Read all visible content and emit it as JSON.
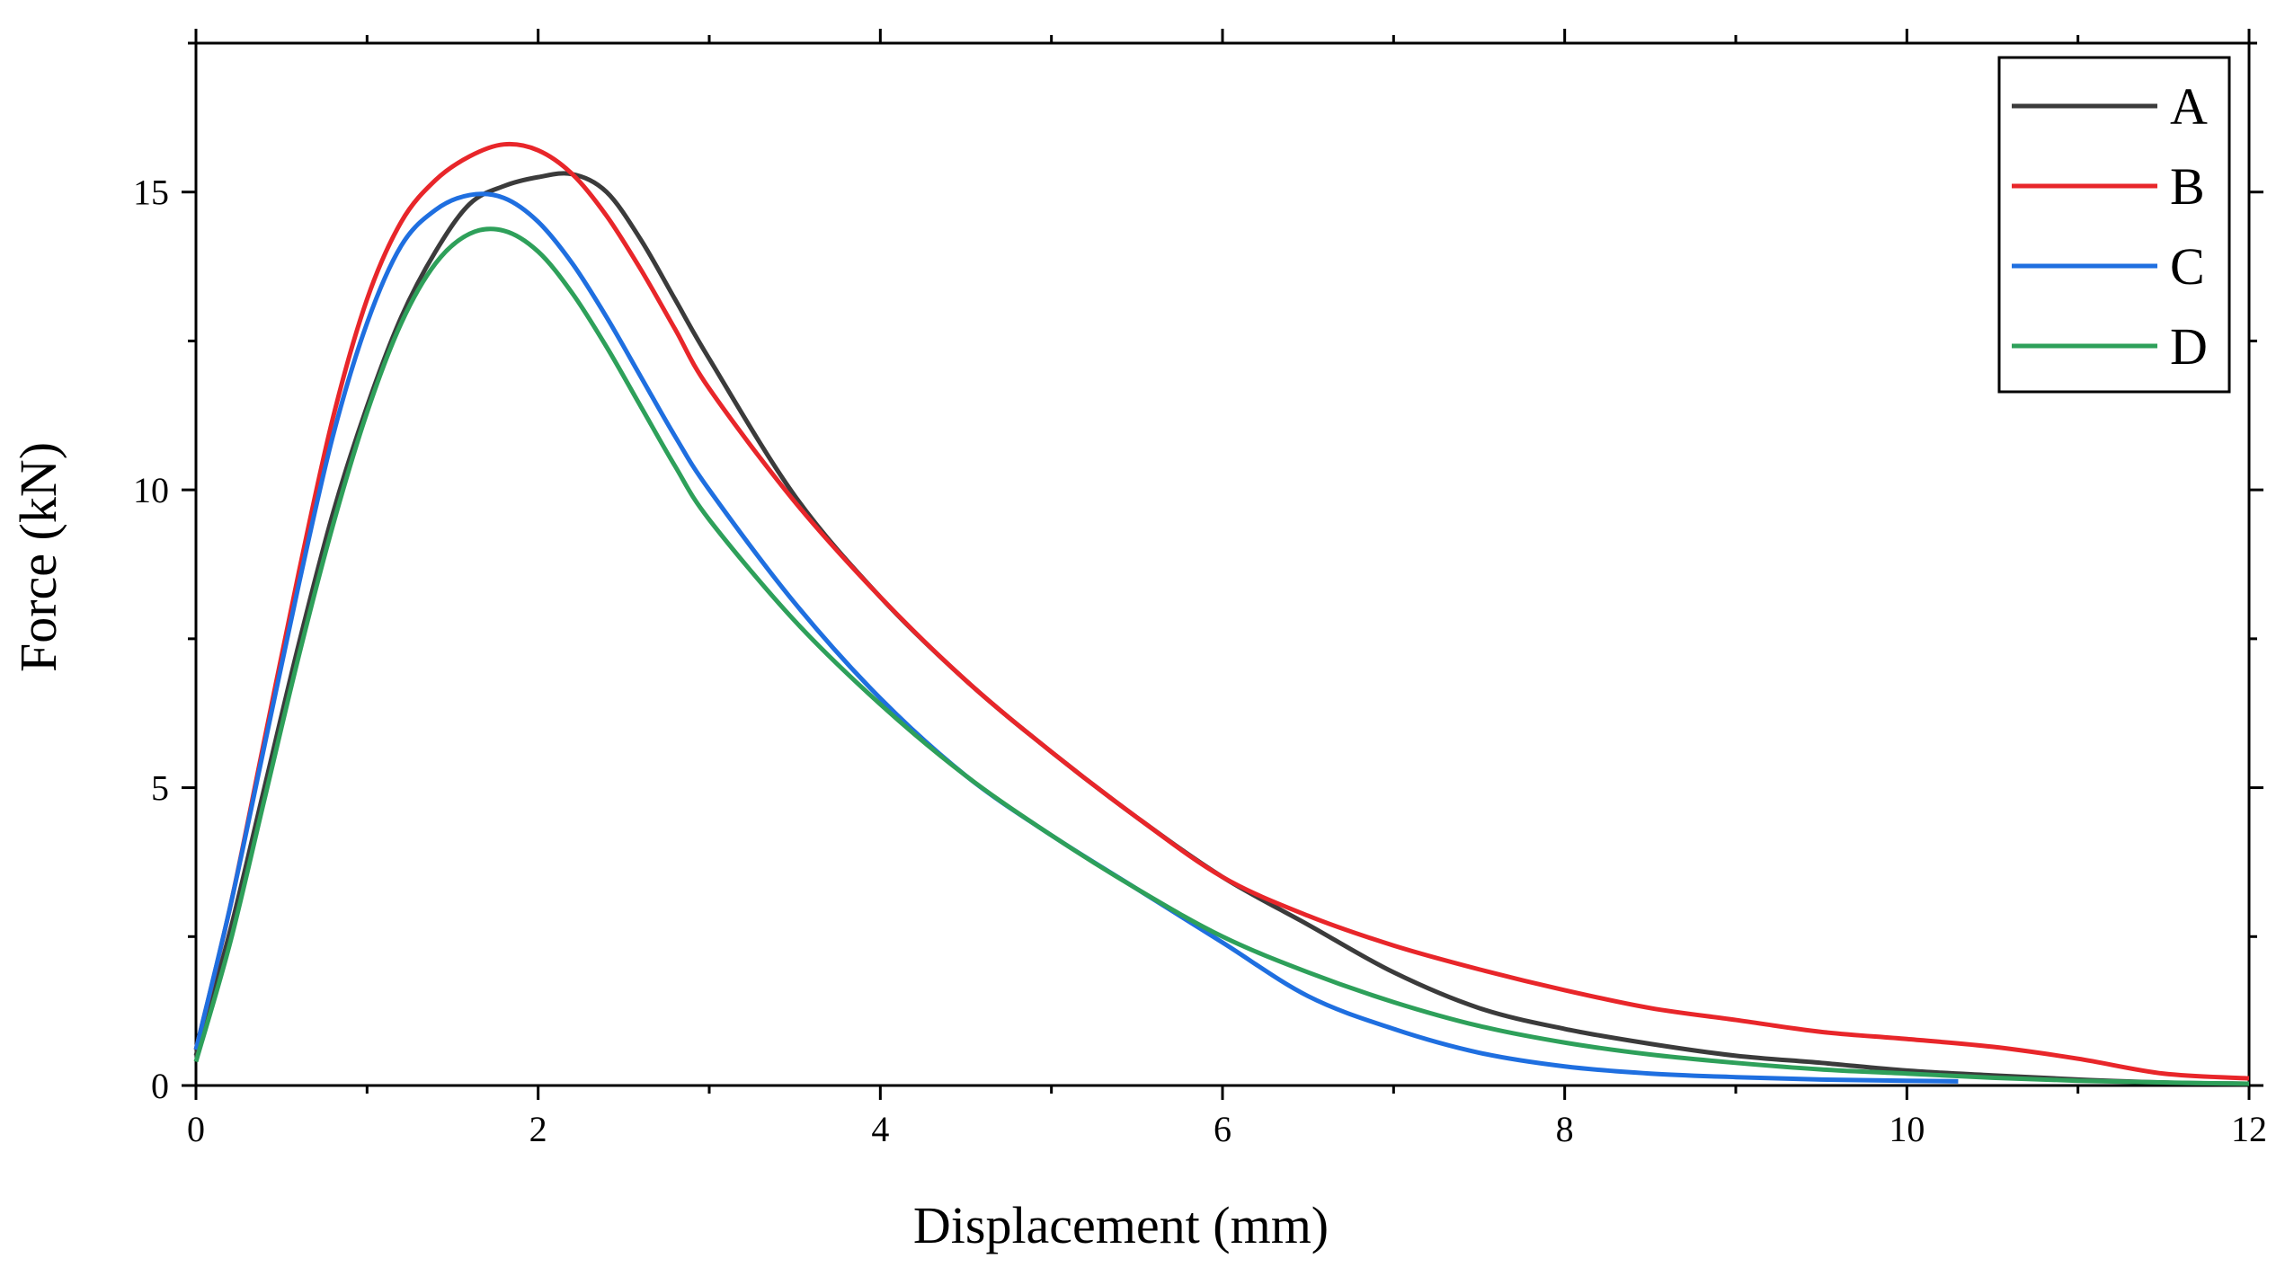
{
  "chart_data": {
    "type": "line",
    "title": "",
    "xlabel": "Displacement (mm)",
    "ylabel": "Force (kN)",
    "xlim": [
      0,
      12
    ],
    "ylim": [
      0,
      17.5
    ],
    "xticks": [
      0,
      2,
      4,
      6,
      8,
      10,
      12
    ],
    "yticks": [
      0,
      5,
      10,
      15
    ],
    "grid": false,
    "legend_position": "top-right",
    "series": [
      {
        "name": "A",
        "color": "#3b3b3b",
        "x": [
          0,
          0.2,
          0.4,
          0.6,
          0.8,
          1.0,
          1.2,
          1.4,
          1.6,
          1.8,
          2.0,
          2.2,
          2.4,
          2.6,
          2.8,
          3.0,
          3.5,
          4.0,
          4.5,
          5.0,
          5.5,
          6.0,
          6.5,
          7.0,
          7.5,
          8.0,
          8.5,
          9.0,
          9.5,
          10.0,
          10.5,
          11.0,
          11.5,
          12.0
        ],
        "y": [
          0.5,
          2.6,
          5.0,
          7.4,
          9.6,
          11.4,
          12.9,
          14.0,
          14.8,
          15.1,
          15.25,
          15.3,
          15.0,
          14.2,
          13.2,
          12.2,
          9.9,
          8.2,
          6.8,
          5.6,
          4.5,
          3.5,
          2.7,
          1.9,
          1.3,
          0.95,
          0.7,
          0.5,
          0.38,
          0.25,
          0.17,
          0.1,
          0.05,
          0.03
        ]
      },
      {
        "name": "B",
        "color": "#e8262a",
        "x": [
          0,
          0.2,
          0.4,
          0.6,
          0.8,
          1.0,
          1.2,
          1.4,
          1.6,
          1.8,
          2.0,
          2.2,
          2.4,
          2.6,
          2.8,
          3.0,
          3.5,
          4.0,
          4.5,
          5.0,
          5.5,
          6.0,
          6.5,
          7.0,
          7.5,
          8.0,
          8.5,
          9.0,
          9.5,
          10.0,
          10.5,
          11.0,
          11.5,
          12.0
        ],
        "y": [
          0.6,
          3.0,
          5.8,
          8.6,
          11.2,
          13.2,
          14.5,
          15.2,
          15.6,
          15.8,
          15.7,
          15.3,
          14.6,
          13.7,
          12.7,
          11.7,
          9.8,
          8.2,
          6.8,
          5.6,
          4.5,
          3.5,
          2.85,
          2.35,
          1.95,
          1.6,
          1.3,
          1.1,
          0.9,
          0.78,
          0.65,
          0.45,
          0.2,
          0.12
        ]
      },
      {
        "name": "C",
        "color": "#1f6fe0",
        "x": [
          0,
          0.2,
          0.4,
          0.6,
          0.8,
          1.0,
          1.2,
          1.4,
          1.6,
          1.8,
          2.0,
          2.2,
          2.4,
          2.6,
          2.8,
          3.0,
          3.5,
          4.0,
          4.5,
          5.0,
          5.5,
          6.0,
          6.5,
          7.0,
          7.5,
          8.0,
          8.5,
          9.0,
          9.5,
          10.0,
          10.3
        ],
        "y": [
          0.6,
          3.0,
          5.7,
          8.4,
          10.9,
          12.8,
          14.1,
          14.7,
          14.95,
          14.9,
          14.5,
          13.8,
          12.9,
          11.9,
          10.9,
          10.0,
          8.1,
          6.5,
          5.2,
          4.2,
          3.3,
          2.4,
          1.5,
          0.95,
          0.55,
          0.32,
          0.2,
          0.14,
          0.1,
          0.08,
          0.07
        ]
      },
      {
        "name": "D",
        "color": "#2ea05a",
        "x": [
          0,
          0.2,
          0.4,
          0.6,
          0.8,
          1.0,
          1.2,
          1.4,
          1.6,
          1.8,
          2.0,
          2.2,
          2.4,
          2.6,
          2.8,
          3.0,
          3.5,
          4.0,
          4.5,
          5.0,
          5.5,
          6.0,
          6.5,
          7.0,
          7.5,
          8.0,
          8.5,
          9.0,
          9.5,
          10.0,
          10.5,
          11.0,
          11.5,
          12.0
        ],
        "y": [
          0.4,
          2.4,
          4.8,
          7.2,
          9.4,
          11.3,
          12.8,
          13.8,
          14.3,
          14.35,
          14.0,
          13.3,
          12.4,
          11.4,
          10.4,
          9.5,
          7.8,
          6.4,
          5.2,
          4.2,
          3.3,
          2.5,
          1.9,
          1.4,
          1.0,
          0.72,
          0.52,
          0.38,
          0.27,
          0.2,
          0.13,
          0.08,
          0.05,
          0.03
        ]
      }
    ]
  }
}
